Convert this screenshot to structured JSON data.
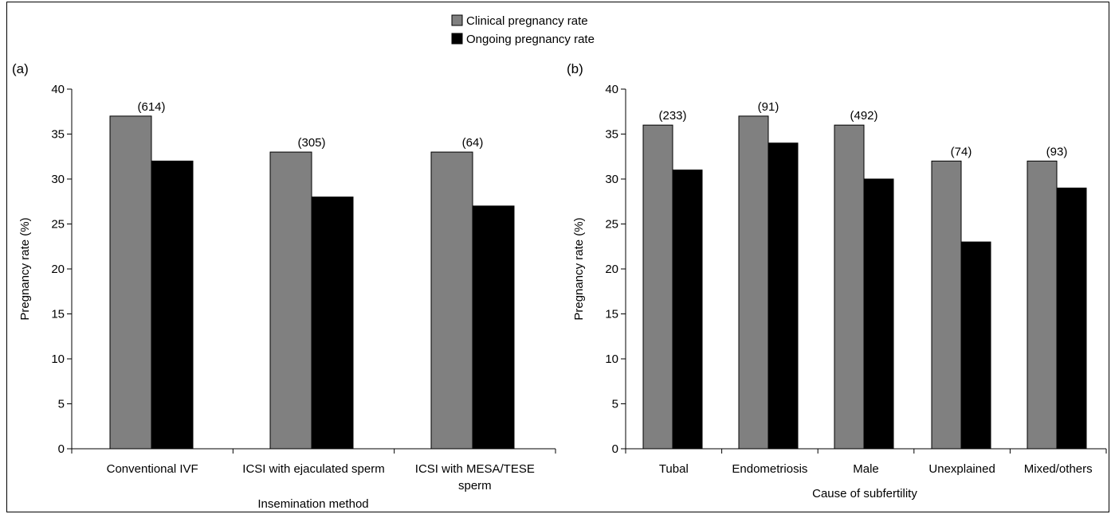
{
  "legend": {
    "items": [
      {
        "label": "Clinical pregnancy rate",
        "color": "#808080"
      },
      {
        "label": "Ongoing pregnancy rate",
        "color": "#000000"
      }
    ],
    "placement": "top-center"
  },
  "chart_data": [
    {
      "type": "bar",
      "panel_label": "(a)",
      "xlabel": "Insemination method",
      "ylabel": "Pregnancy rate (%)",
      "ylim": [
        0,
        40
      ],
      "yticks": [
        0,
        5,
        10,
        15,
        20,
        25,
        30,
        35,
        40
      ],
      "categories": [
        "Conventional IVF",
        "ICSI with ejaculated sperm",
        "ICSI with MESA/TESE sperm"
      ],
      "category_lines": [
        [
          "Conventional IVF"
        ],
        [
          "ICSI with ejaculated sperm"
        ],
        [
          "ICSI with MESA/TESE",
          "sperm"
        ]
      ],
      "series": [
        {
          "name": "Clinical pregnancy rate",
          "color": "#808080",
          "values": [
            37,
            33,
            33
          ]
        },
        {
          "name": "Ongoing pregnancy rate",
          "color": "#000000",
          "values": [
            32,
            28,
            27
          ]
        }
      ],
      "annotations": [
        "(614)",
        "(305)",
        "(64)"
      ],
      "grid": false
    },
    {
      "type": "bar",
      "panel_label": "(b)",
      "xlabel": "Cause of subfertility",
      "ylabel": "Pregnancy rate (%)",
      "ylim": [
        0,
        40
      ],
      "yticks": [
        0,
        5,
        10,
        15,
        20,
        25,
        30,
        35,
        40
      ],
      "categories": [
        "Tubal",
        "Endometriosis",
        "Male",
        "Unexplained",
        "Mixed/others"
      ],
      "category_lines": [
        [
          "Tubal"
        ],
        [
          "Endometriosis"
        ],
        [
          "Male"
        ],
        [
          "Unexplained"
        ],
        [
          "Mixed/others"
        ]
      ],
      "series": [
        {
          "name": "Clinical pregnancy rate",
          "color": "#808080",
          "values": [
            36,
            37,
            36,
            32,
            32
          ]
        },
        {
          "name": "Ongoing pregnancy rate",
          "color": "#000000",
          "values": [
            31,
            34,
            30,
            23,
            29
          ]
        }
      ],
      "annotations": [
        "(233)",
        "(91)",
        "(492)",
        "(74)",
        "(93)"
      ],
      "grid": false
    }
  ]
}
